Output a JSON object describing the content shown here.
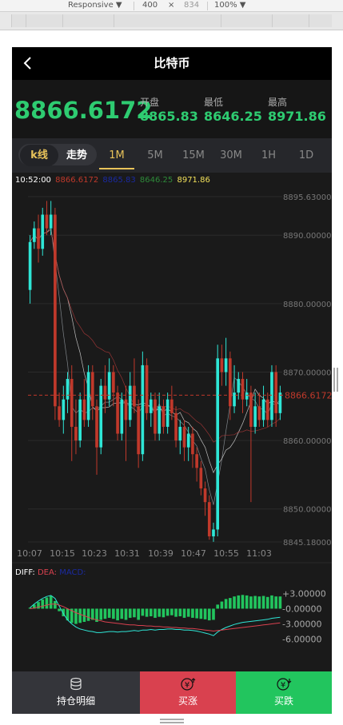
{
  "devtools": {
    "device": "Responsive ▼",
    "width": "400",
    "times": "×",
    "height": "834",
    "zoom": "100% ▼"
  },
  "header": {
    "title": "比特币",
    "back_icon": "chevron-left-icon"
  },
  "price": {
    "current": "8866.6172",
    "open_label": "开盘",
    "open": "8865.83",
    "low_label": "最低",
    "low": "8646.25",
    "high_label": "最高",
    "high": "8971.86"
  },
  "tabs": {
    "kline": "k线",
    "trend": "走势",
    "intervals": [
      "1M",
      "5M",
      "15M",
      "30M",
      "1H",
      "1D"
    ],
    "active_interval": "1M"
  },
  "info": {
    "time": "10:52:00",
    "v1": "8866.6172",
    "v2": "8865.83",
    "v3": "8646.25",
    "v4": "8971.86"
  },
  "colors": {
    "up": "#2ee6d6",
    "down": "#c0392b",
    "green": "#2ecc71",
    "accent": "#e8c35a",
    "btn_up": "#d9414f",
    "btn_down": "#22c55e"
  },
  "chart_data": {
    "type": "candlestick",
    "ylim": [
      8845.18,
      8895.63
    ],
    "y_ticks": [
      "8895.63000",
      "8890.00000",
      "8880.00000",
      "8870.00000",
      "8860.00000",
      "8850.00000",
      "8845.18000"
    ],
    "y_tick_values": [
      8895.63,
      8890,
      8880,
      8870,
      8860,
      8850,
      8845.18
    ],
    "x_ticks": [
      "10:07",
      "10:15",
      "10:23",
      "10:31",
      "10:39",
      "10:47",
      "10:55",
      "11:03"
    ],
    "current_price_label": "8866.6172",
    "current_price": 8866.6172,
    "candles": [
      {
        "o": 8882,
        "c": 8889,
        "h": 8890,
        "l": 8880
      },
      {
        "o": 8889,
        "c": 8891,
        "h": 8892,
        "l": 8888
      },
      {
        "o": 8891,
        "c": 8888,
        "h": 8893,
        "l": 8886
      },
      {
        "o": 8888,
        "c": 8893,
        "h": 8894,
        "l": 8887
      },
      {
        "o": 8893,
        "c": 8891,
        "h": 8895,
        "l": 8890
      },
      {
        "o": 8891,
        "c": 8893,
        "h": 8895,
        "l": 8890
      },
      {
        "o": 8893,
        "c": 8865,
        "h": 8894,
        "l": 8863
      },
      {
        "o": 8865,
        "c": 8863,
        "h": 8867,
        "l": 8862
      },
      {
        "o": 8863,
        "c": 8866,
        "h": 8868,
        "l": 8861
      },
      {
        "o": 8866,
        "c": 8869,
        "h": 8870,
        "l": 8864
      },
      {
        "o": 8869,
        "c": 8862,
        "h": 8871,
        "l": 8857
      },
      {
        "o": 8862,
        "c": 8860,
        "h": 8866,
        "l": 8858
      },
      {
        "o": 8860,
        "c": 8866,
        "h": 8867,
        "l": 8859
      },
      {
        "o": 8866,
        "c": 8863,
        "h": 8869,
        "l": 8862
      },
      {
        "o": 8863,
        "c": 8870,
        "h": 8871,
        "l": 8862
      },
      {
        "o": 8870,
        "c": 8865,
        "h": 8871,
        "l": 8863
      },
      {
        "o": 8865,
        "c": 8859,
        "h": 8866,
        "l": 8855
      },
      {
        "o": 8859,
        "c": 8868,
        "h": 8869,
        "l": 8858
      },
      {
        "o": 8868,
        "c": 8866,
        "h": 8871,
        "l": 8864
      },
      {
        "o": 8866,
        "c": 8870,
        "h": 8872,
        "l": 8865
      },
      {
        "o": 8870,
        "c": 8867,
        "h": 8871,
        "l": 8865
      },
      {
        "o": 8867,
        "c": 8861,
        "h": 8868,
        "l": 8860
      },
      {
        "o": 8861,
        "c": 8866,
        "h": 8867,
        "l": 8860
      },
      {
        "o": 8866,
        "c": 8863,
        "h": 8868,
        "l": 8857
      },
      {
        "o": 8863,
        "c": 8868,
        "h": 8870,
        "l": 8862
      },
      {
        "o": 8868,
        "c": 8865,
        "h": 8872,
        "l": 8864
      },
      {
        "o": 8865,
        "c": 8858,
        "h": 8866,
        "l": 8856
      },
      {
        "o": 8858,
        "c": 8871,
        "h": 8873,
        "l": 8857
      },
      {
        "o": 8871,
        "c": 8864,
        "h": 8872,
        "l": 8863
      },
      {
        "o": 8864,
        "c": 8866,
        "h": 8867,
        "l": 8862
      },
      {
        "o": 8866,
        "c": 8861,
        "h": 8867,
        "l": 8860
      },
      {
        "o": 8861,
        "c": 8865,
        "h": 8867,
        "l": 8860
      },
      {
        "o": 8865,
        "c": 8862,
        "h": 8866,
        "l": 8861
      },
      {
        "o": 8862,
        "c": 8866,
        "h": 8867,
        "l": 8861
      },
      {
        "o": 8866,
        "c": 8864,
        "h": 8868,
        "l": 8863
      },
      {
        "o": 8864,
        "c": 8860,
        "h": 8865,
        "l": 8859
      },
      {
        "o": 8860,
        "c": 8862,
        "h": 8863,
        "l": 8858
      },
      {
        "o": 8862,
        "c": 8859,
        "h": 8863,
        "l": 8857
      },
      {
        "o": 8859,
        "c": 8861,
        "h": 8862,
        "l": 8857
      },
      {
        "o": 8861,
        "c": 8858,
        "h": 8862,
        "l": 8856
      },
      {
        "o": 8858,
        "c": 8856,
        "h": 8859,
        "l": 8854
      },
      {
        "o": 8856,
        "c": 8853,
        "h": 8857,
        "l": 8852
      },
      {
        "o": 8853,
        "c": 8851,
        "h": 8854,
        "l": 8849
      },
      {
        "o": 8851,
        "c": 8846,
        "h": 8852,
        "l": 8845.5
      },
      {
        "o": 8846,
        "c": 8847,
        "h": 8848,
        "l": 8845.2
      },
      {
        "o": 8847,
        "c": 8872,
        "h": 8874,
        "l": 8846
      },
      {
        "o": 8872,
        "c": 8870,
        "h": 8874,
        "l": 8868
      },
      {
        "o": 8870,
        "c": 8872,
        "h": 8875,
        "l": 8868
      },
      {
        "o": 8872,
        "c": 8865,
        "h": 8873,
        "l": 8863
      },
      {
        "o": 8865,
        "c": 8867,
        "h": 8871,
        "l": 8864
      },
      {
        "o": 8867,
        "c": 8869,
        "h": 8870,
        "l": 8866
      },
      {
        "o": 8869,
        "c": 8866,
        "h": 8870,
        "l": 8864
      },
      {
        "o": 8866,
        "c": 8867,
        "h": 8869,
        "l": 8865
      },
      {
        "o": 8867,
        "c": 8862,
        "h": 8868,
        "l": 8851
      },
      {
        "o": 8862,
        "c": 8865,
        "h": 8867,
        "l": 8861
      },
      {
        "o": 8865,
        "c": 8863,
        "h": 8867,
        "l": 8862
      },
      {
        "o": 8863,
        "c": 8866,
        "h": 8868,
        "l": 8862
      },
      {
        "o": 8866,
        "c": 8863,
        "h": 8867,
        "l": 8862
      },
      {
        "o": 8863,
        "c": 8870,
        "h": 8871,
        "l": 8862
      },
      {
        "o": 8870,
        "c": 8864,
        "h": 8871,
        "l": 8862
      },
      {
        "o": 8864,
        "c": 8867,
        "h": 8868,
        "l": 8863
      }
    ],
    "macd": {
      "legend": {
        "diff": "DIFF:",
        "dea": "DEA:",
        "macd": "MACD:"
      },
      "y_ticks": [
        "+3.00000",
        "-0.00000",
        "-3.00000",
        "-6.00000"
      ],
      "y_tick_values": [
        3,
        0,
        -3,
        -6
      ],
      "ylim": [
        -7,
        4
      ],
      "hist": [
        0.2,
        0.8,
        1.3,
        1.8,
        2.2,
        2.5,
        1.5,
        -0.5,
        -1.5,
        -2.3,
        -2.8,
        -3.0,
        -2.8,
        -2.6,
        -2.4,
        -2.2,
        -2.6,
        -2.2,
        -2.0,
        -1.8,
        -2.0,
        -2.3,
        -2.0,
        -2.2,
        -1.8,
        -1.7,
        -2.2,
        -1.4,
        -1.6,
        -1.5,
        -1.8,
        -1.6,
        -1.7,
        -1.4,
        -1.3,
        -1.6,
        -1.5,
        -1.8,
        -1.6,
        -1.8,
        -1.9,
        -2.0,
        -2.1,
        -2.3,
        -2.2,
        0.8,
        1.4,
        1.9,
        2.1,
        2.4,
        2.6,
        2.7,
        2.6,
        2.4,
        2.5,
        2.4,
        2.5,
        2.3,
        2.6,
        2.4,
        2.4
      ],
      "diff": [
        0.2,
        0.9,
        1.5,
        2.0,
        2.4,
        2.6,
        2.0,
        0.5,
        -1.0,
        -2.2,
        -3.0,
        -3.6,
        -4.0,
        -4.2,
        -4.4,
        -4.5,
        -4.7,
        -4.7,
        -4.6,
        -4.5,
        -4.5,
        -4.6,
        -4.5,
        -4.5,
        -4.4,
        -4.3,
        -4.4,
        -4.2,
        -4.2,
        -4.1,
        -4.2,
        -4.1,
        -4.1,
        -4.0,
        -4.0,
        -4.1,
        -4.1,
        -4.2,
        -4.2,
        -4.3,
        -4.4,
        -4.6,
        -4.8,
        -5.0,
        -5.3,
        -4.6,
        -4.1,
        -3.7,
        -3.4,
        -3.1,
        -2.9,
        -2.7,
        -2.6,
        -2.5,
        -2.4,
        -2.3,
        -2.2,
        -2.1,
        -1.9,
        -1.8,
        -1.7
      ],
      "dea": [
        0.0,
        0.1,
        0.3,
        0.5,
        0.7,
        0.9,
        0.9,
        0.7,
        0.4,
        0.0,
        -0.4,
        -0.8,
        -1.1,
        -1.4,
        -1.7,
        -2.0,
        -2.2,
        -2.4,
        -2.6,
        -2.7,
        -2.8,
        -2.9,
        -3.0,
        -3.1,
        -3.2,
        -3.2,
        -3.3,
        -3.3,
        -3.4,
        -3.4,
        -3.5,
        -3.5,
        -3.6,
        -3.6,
        -3.7,
        -3.7,
        -3.8,
        -3.8,
        -3.9,
        -3.9,
        -4.0,
        -4.1,
        -4.2,
        -4.3,
        -4.4,
        -4.3,
        -4.2,
        -4.1,
        -4.0,
        -3.9,
        -3.8,
        -3.7,
        -3.6,
        -3.5,
        -3.4,
        -3.3,
        -3.2,
        -3.1,
        -3.0,
        -2.9,
        -2.8
      ]
    }
  },
  "bottom": {
    "hold": "持仓明细",
    "up": "买涨",
    "down": "买跌"
  }
}
